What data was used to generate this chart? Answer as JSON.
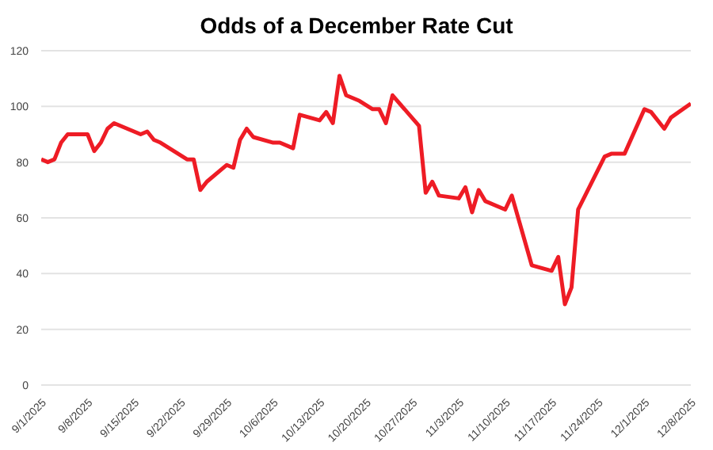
{
  "chart_data": {
    "type": "line",
    "title": "Odds of a December Rate Cut",
    "x": [
      "2025-09-01",
      "2025-09-02",
      "2025-09-03",
      "2025-09-04",
      "2025-09-05",
      "2025-09-08",
      "2025-09-09",
      "2025-09-10",
      "2025-09-11",
      "2025-09-12",
      "2025-09-16",
      "2025-09-17",
      "2025-09-18",
      "2025-09-19",
      "2025-09-23",
      "2025-09-24",
      "2025-09-25",
      "2025-09-26",
      "2025-09-29",
      "2025-09-30",
      "2025-10-01",
      "2025-10-02",
      "2025-10-03",
      "2025-10-06",
      "2025-10-07",
      "2025-10-09",
      "2025-10-10",
      "2025-10-13",
      "2025-10-14",
      "2025-10-15",
      "2025-10-16",
      "2025-10-17",
      "2025-10-19",
      "2025-10-21",
      "2025-10-22",
      "2025-10-23",
      "2025-10-24",
      "2025-10-28",
      "2025-10-29",
      "2025-10-30",
      "2025-10-31",
      "2025-11-03",
      "2025-11-04",
      "2025-11-05",
      "2025-11-06",
      "2025-11-07",
      "2025-11-10",
      "2025-11-11",
      "2025-11-14",
      "2025-11-17",
      "2025-11-18",
      "2025-11-19",
      "2025-11-20",
      "2025-11-21",
      "2025-11-25",
      "2025-11-26",
      "2025-11-28",
      "2025-12-01",
      "2025-12-02",
      "2025-12-04",
      "2025-12-05",
      "2025-12-08"
    ],
    "series": [
      {
        "color": "#ee1c25",
        "values": [
          81,
          80,
          81,
          87,
          90,
          90,
          84,
          87,
          92,
          94,
          90,
          91,
          88,
          87,
          81,
          81,
          70,
          73,
          79,
          78,
          88,
          92,
          89,
          87,
          87,
          85,
          97,
          95,
          98,
          94,
          111,
          104,
          102,
          99,
          99,
          94,
          104,
          93,
          69,
          73,
          68,
          67,
          71,
          62,
          70,
          66,
          63,
          68,
          43,
          41,
          46,
          29,
          35,
          63,
          82,
          83,
          83,
          99,
          98,
          92,
          96,
          101
        ]
      }
    ],
    "xlim": [
      "2025-09-01",
      "2025-12-08"
    ],
    "xticks": [
      {
        "value": "2025-09-01",
        "label": "9/1/2025"
      },
      {
        "value": "2025-09-08",
        "label": "9/8/2025"
      },
      {
        "value": "2025-09-15",
        "label": "9/15/2025"
      },
      {
        "value": "2025-09-22",
        "label": "9/22/2025"
      },
      {
        "value": "2025-09-29",
        "label": "9/29/2025"
      },
      {
        "value": "2025-10-06",
        "label": "10/6/2025"
      },
      {
        "value": "2025-10-13",
        "label": "10/13/2025"
      },
      {
        "value": "2025-10-20",
        "label": "10/20/2025"
      },
      {
        "value": "2025-10-27",
        "label": "10/27/2025"
      },
      {
        "value": "2025-11-03",
        "label": "11/3/2025"
      },
      {
        "value": "2025-11-10",
        "label": "11/10/2025"
      },
      {
        "value": "2025-11-17",
        "label": "11/17/2025"
      },
      {
        "value": "2025-11-24",
        "label": "11/24/2025"
      },
      {
        "value": "2025-12-01",
        "label": "12/1/2025"
      },
      {
        "value": "2025-12-08",
        "label": "12/8/2025"
      }
    ],
    "ylim": [
      0,
      120
    ],
    "yticks": [
      0,
      20,
      40,
      60,
      80,
      100,
      120
    ],
    "grid": "y"
  }
}
